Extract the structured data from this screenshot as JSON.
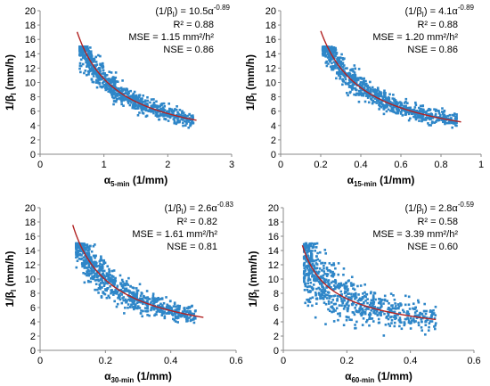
{
  "colors": {
    "points": "#2E86C8",
    "fit": "#B22222",
    "axis": "#888888"
  },
  "chart_data": [
    {
      "type": "scatter",
      "panel": "a",
      "xlim": [
        0,
        3
      ],
      "ylim": [
        0,
        20
      ],
      "xticks": [
        0,
        1,
        2,
        3
      ],
      "yticks": [
        0,
        2,
        4,
        6,
        8,
        10,
        12,
        14,
        16,
        18,
        20
      ],
      "xtick_labels": [
        "0",
        "1",
        "2",
        "3"
      ],
      "ytick_labels": [
        "0",
        "2",
        "4",
        "6",
        "8",
        "10",
        "12",
        "14",
        "16",
        "18",
        "20"
      ],
      "xlabel": {
        "main": "α",
        "sub": "5-min",
        "rest": " (1/mm)"
      },
      "ylabel": {
        "main": "1/β",
        "sub": "I",
        "rest": " (mm/h)"
      },
      "equation": {
        "lhs": "(1/β",
        "lhs_sub": "I",
        "rhs": ") = 10.5α",
        "exp": "-0.89"
      },
      "stats": [
        "R² = 0.88",
        "MSE = 1.15 mm²/h²",
        "NSE = 0.86"
      ],
      "fit": {
        "a": 10.5,
        "b": -0.89,
        "x_range": [
          0.58,
          2.45
        ]
      },
      "scatter": {
        "n": 900,
        "x_min": 0.62,
        "x_max": 2.4,
        "y_max": 15,
        "noise": 0.09,
        "seed": 11
      }
    },
    {
      "type": "scatter",
      "panel": "b",
      "xlim": [
        0,
        1
      ],
      "ylim": [
        0,
        20
      ],
      "xticks": [
        0,
        0.2,
        0.4,
        0.6,
        0.8,
        1
      ],
      "yticks": [
        0,
        2,
        4,
        6,
        8,
        10,
        12,
        14,
        16,
        18,
        20
      ],
      "xtick_labels": [
        "0",
        "0.2",
        "0.4",
        "0.6",
        "0.8",
        "1"
      ],
      "ytick_labels": [
        "0",
        "2",
        "4",
        "6",
        "8",
        "10",
        "12",
        "14",
        "16",
        "18",
        "20"
      ],
      "xlabel": {
        "main": "α",
        "sub": "15-min",
        "rest": " (1/mm)"
      },
      "ylabel": {
        "main": "1/β",
        "sub": "I",
        "rest": " (mm/h)"
      },
      "equation": {
        "lhs": "(1/β",
        "lhs_sub": "I",
        "rhs": ") = 4.1α",
        "exp": "-0.89"
      },
      "stats": [
        "R² = 0.88",
        "MSE = 1.20 mm²/h²",
        "NSE = 0.86"
      ],
      "fit": {
        "a": 4.1,
        "b": -0.89,
        "x_range": [
          0.2,
          0.9
        ]
      },
      "scatter": {
        "n": 900,
        "x_min": 0.21,
        "x_max": 0.88,
        "y_max": 15,
        "noise": 0.09,
        "seed": 23
      }
    },
    {
      "type": "scatter",
      "panel": "c",
      "xlim": [
        0,
        0.6
      ],
      "ylim": [
        0,
        20
      ],
      "xticks": [
        0,
        0.2,
        0.4,
        0.6
      ],
      "yticks": [
        0,
        2,
        4,
        6,
        8,
        10,
        12,
        14,
        16,
        18,
        20
      ],
      "xtick_labels": [
        "0",
        "0.2",
        "0.4",
        "0.6"
      ],
      "ytick_labels": [
        "0",
        "2",
        "4",
        "6",
        "8",
        "10",
        "12",
        "14",
        "16",
        "18",
        "20"
      ],
      "xlabel": {
        "main": "α",
        "sub": "30-min",
        "rest": " (1/mm)"
      },
      "ylabel": {
        "main": "1/β",
        "sub": "I",
        "rest": " (mm/h)"
      },
      "equation": {
        "lhs": "(1/β",
        "lhs_sub": "I",
        "rhs": ") = 2.6α",
        "exp": "-0.83"
      },
      "stats": [
        "R² = 0.82",
        "MSE = 1.61 mm²/h²",
        "NSE = 0.81"
      ],
      "fit": {
        "a": 2.6,
        "b": -0.83,
        "x_range": [
          0.1,
          0.5
        ]
      },
      "scatter": {
        "n": 850,
        "x_min": 0.11,
        "x_max": 0.48,
        "y_max": 15,
        "noise": 0.12,
        "seed": 37
      }
    },
    {
      "type": "scatter",
      "panel": "d",
      "xlim": [
        0,
        0.6
      ],
      "ylim": [
        0,
        20
      ],
      "xticks": [
        0,
        0.2,
        0.4,
        0.6
      ],
      "yticks": [
        0,
        2,
        4,
        6,
        8,
        10,
        12,
        14,
        16,
        18,
        20
      ],
      "xtick_labels": [
        "0",
        "0.2",
        "0.4",
        "0.6"
      ],
      "ytick_labels": [
        "0",
        "2",
        "4",
        "6",
        "8",
        "10",
        "12",
        "14",
        "16",
        "18",
        "20"
      ],
      "xlabel": {
        "main": "α",
        "sub": "60-min",
        "rest": " (1/mm)"
      },
      "ylabel": {
        "main": "1/β",
        "sub": "I",
        "rest": " (mm/h)"
      },
      "equation": {
        "lhs": "(1/β",
        "lhs_sub": "I",
        "rhs": ") = 2.8α",
        "exp": "-0.59"
      },
      "stats": [
        "R² = 0.58",
        "MSE = 3.39 mm²/h²",
        "NSE = 0.60"
      ],
      "fit": {
        "a": 2.8,
        "b": -0.59,
        "x_range": [
          0.06,
          0.48
        ]
      },
      "scatter": {
        "n": 800,
        "x_min": 0.065,
        "x_max": 0.48,
        "y_max": 15,
        "noise": 0.22,
        "seed": 53
      }
    }
  ]
}
